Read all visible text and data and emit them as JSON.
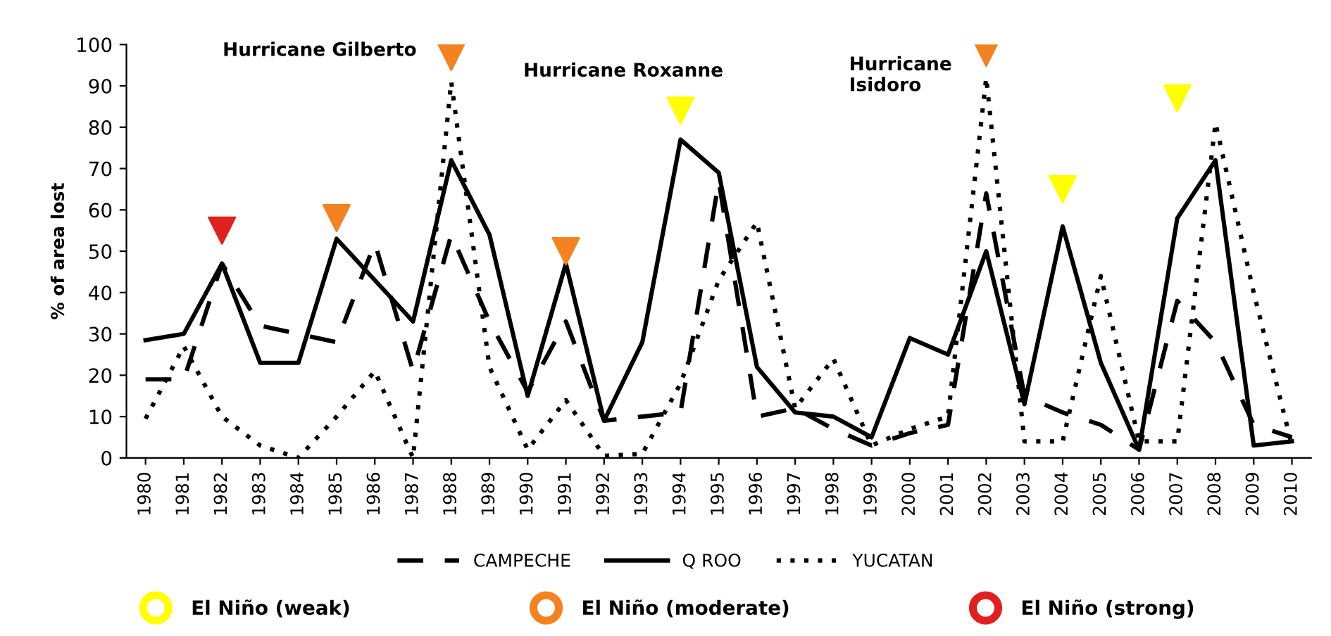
{
  "chart_data": {
    "type": "line",
    "ylabel": "% of area lost",
    "categories": [
      "1980",
      "1981",
      "1982",
      "1983",
      "1984",
      "1985",
      "1986",
      "1987",
      "1988",
      "1989",
      "1990",
      "1991",
      "1992",
      "1993",
      "1994",
      "1995",
      "1996",
      "1997",
      "1998",
      "1999",
      "2000",
      "2001",
      "2002",
      "2003",
      "2004",
      "2005",
      "2006",
      "2007",
      "2008",
      "2009",
      "2010"
    ],
    "ylim": [
      0,
      100
    ],
    "yticks": [
      0,
      10,
      20,
      30,
      40,
      50,
      60,
      70,
      80,
      90,
      100
    ],
    "grid": false,
    "legend": "bottom",
    "marker": "none",
    "series": [
      {
        "name": "CAMPECHE",
        "color": "#000000",
        "line_style": "dashed",
        "values": [
          19,
          19,
          47,
          32,
          30,
          28,
          52,
          21,
          54,
          33,
          16,
          33,
          9,
          10,
          11,
          67,
          10,
          12,
          7,
          3,
          6,
          8,
          64,
          15,
          11,
          8,
          2,
          38,
          28,
          8,
          5
        ]
      },
      {
        "name": "Q ROO",
        "color": "#000000",
        "line_style": "solid",
        "values": [
          28.5,
          30,
          47,
          23,
          23,
          53,
          43,
          33,
          72,
          54,
          15,
          47,
          9,
          28,
          77,
          69,
          22,
          11,
          10,
          5,
          29,
          25,
          50,
          13,
          56,
          23,
          2,
          58,
          72,
          3,
          4
        ]
      },
      {
        "name": "YUCATAN",
        "color": "#000000",
        "line_style": "dotted",
        "values": [
          9.5,
          27,
          10,
          3,
          0,
          10,
          21,
          0,
          91,
          22,
          2,
          14,
          0.5,
          1,
          18,
          43,
          57,
          12,
          24,
          3,
          7,
          10,
          92,
          4,
          4,
          44,
          4,
          4,
          81,
          40,
          3
        ]
      },
      {
        "name": "El Niño (weak)",
        "type": "scatter",
        "marker": "triangle",
        "color": "#ffff00",
        "values": [
          null,
          null,
          null,
          null,
          null,
          null,
          null,
          null,
          null,
          null,
          null,
          null,
          null,
          null,
          84,
          null,
          null,
          null,
          null,
          null,
          null,
          null,
          null,
          null,
          65,
          null,
          null,
          87,
          null,
          null,
          null
        ]
      },
      {
        "name": "El Niño (moderate)",
        "type": "scatter",
        "marker": "triangle",
        "color": "#f58220",
        "values": [
          null,
          null,
          null,
          null,
          null,
          58,
          null,
          null,
          97,
          null,
          null,
          50,
          null,
          null,
          null,
          null,
          null,
          null,
          null,
          null,
          null,
          null,
          98,
          null,
          null,
          null,
          null,
          null,
          null,
          null,
          null
        ]
      },
      {
        "name": "El Niño (strong)",
        "type": "scatter",
        "marker": "triangle",
        "color": "#e02020",
        "values": [
          null,
          null,
          55,
          null,
          null,
          null,
          null,
          null,
          null,
          null,
          null,
          null,
          null,
          null,
          null,
          null,
          null,
          null,
          null,
          null,
          null,
          null,
          null,
          null,
          null,
          null,
          null,
          null,
          null,
          null,
          null
        ]
      }
    ],
    "annotations": [
      "Hurricane Gilberto",
      "Hurricane Roxanne",
      "Hurricane\nIsidoro"
    ]
  }
}
